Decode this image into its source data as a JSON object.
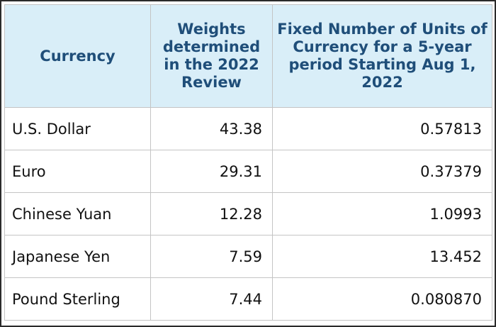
{
  "table": {
    "headers": [
      "Currency",
      "Weights determined in the 2022 Review",
      "Fixed Number of Units of Currency for a 5-year period Starting Aug 1, 2022"
    ],
    "rows": [
      {
        "currency": "U.S. Dollar",
        "weight": "43.38",
        "units": "0.57813"
      },
      {
        "currency": "Euro",
        "weight": "29.31",
        "units": "0.37379"
      },
      {
        "currency": "Chinese Yuan",
        "weight": "12.28",
        "units": "1.0993"
      },
      {
        "currency": "Japanese Yen",
        "weight": "7.59",
        "units": "13.452"
      },
      {
        "currency": "Pound Sterling",
        "weight": "7.44",
        "units": "0.080870"
      }
    ]
  },
  "colors": {
    "header_bg": "#d9eef8",
    "header_text": "#1f4e79",
    "border": "#c4c4c4"
  }
}
